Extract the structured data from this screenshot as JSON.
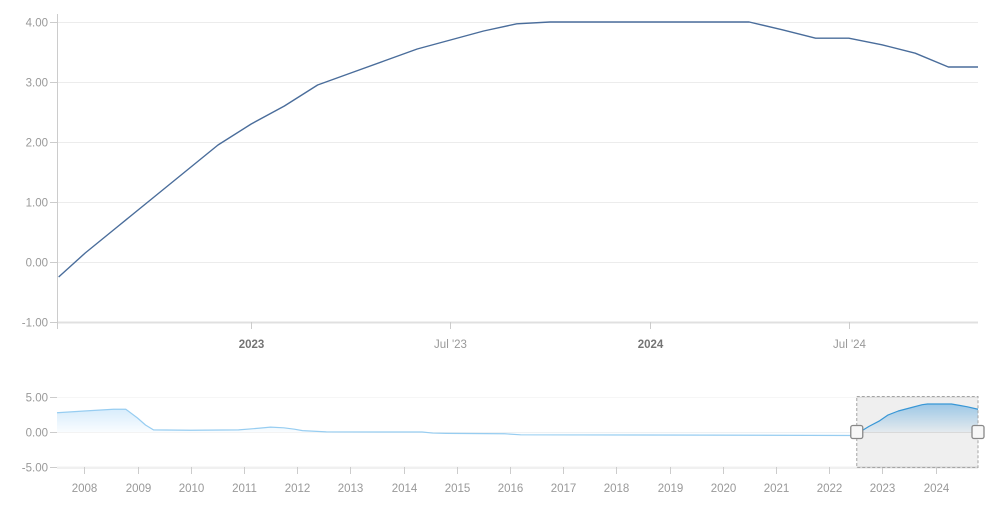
{
  "colors": {
    "main_line": "#4a6d9b",
    "nav_line": "#2f9be3",
    "nav_fill_top": "#64b5f0",
    "grid": "#ececec",
    "zero_grid": "#e6e6e6",
    "axis_line": "#e0e0e0",
    "vaxis_line": "#cccccc",
    "tick": "#cccccc",
    "axis_label": "#999999",
    "axis_label_bold": "#757575",
    "mask_fill": "rgba(120,120,120,0.12)",
    "mask_outline": "#a5a5a5",
    "dim_overlay": "rgba(255,255,255,0.5)",
    "handle_fill": "#f7f7f7",
    "handle_border": "#888888"
  },
  "chart_data": {
    "main": {
      "type": "line",
      "series_name": "rate",
      "x": [
        "2022-07",
        "2022-08",
        "2022-09",
        "2022-10",
        "2022-11",
        "2022-12",
        "2023-01",
        "2023-02",
        "2023-03",
        "2023-04",
        "2023-05",
        "2023-06",
        "2023-07",
        "2023-08",
        "2023-09",
        "2023-10",
        "2023-11",
        "2023-12",
        "2024-01",
        "2024-02",
        "2024-03",
        "2024-04",
        "2024-05",
        "2024-06",
        "2024-07",
        "2024-08",
        "2024-09",
        "2024-10"
      ],
      "values": [
        -0.25,
        0.15,
        0.6,
        1.05,
        1.5,
        1.95,
        2.3,
        2.6,
        2.95,
        3.15,
        3.35,
        3.55,
        3.7,
        3.85,
        3.97,
        4.0,
        4.0,
        4.0,
        4.0,
        4.0,
        4.0,
        4.0,
        3.87,
        3.73,
        3.73,
        3.62,
        3.48,
        3.25
      ],
      "ylim": [
        -1,
        4
      ],
      "grid": true,
      "y_ticks": [
        {
          "value": 4,
          "label": "4.00"
        },
        {
          "value": 3,
          "label": "3.00"
        },
        {
          "value": 2,
          "label": "2.00"
        },
        {
          "value": 1,
          "label": "1.00"
        },
        {
          "value": 0,
          "label": "0.00"
        },
        {
          "value": -1,
          "label": "-1.00"
        }
      ],
      "x_ticks": [
        {
          "label": "",
          "month": 0.15,
          "bold": false
        },
        {
          "label": "2023",
          "month": 6,
          "bold": true
        },
        {
          "label": "Jul '23",
          "month": 12,
          "bold": false
        },
        {
          "label": "2024",
          "month": 18,
          "bold": true
        },
        {
          "label": "Jul '24",
          "month": 24,
          "bold": false
        }
      ]
    },
    "navigator": {
      "type": "area",
      "series_name": "rate-history",
      "points": [
        [
          2007.45,
          2.75
        ],
        [
          2008.0,
          3.0
        ],
        [
          2008.55,
          3.25
        ],
        [
          2008.78,
          3.25
        ],
        [
          2009.0,
          2.0
        ],
        [
          2009.15,
          1.0
        ],
        [
          2009.3,
          0.3
        ],
        [
          2010.0,
          0.25
        ],
        [
          2010.9,
          0.3
        ],
        [
          2011.3,
          0.55
        ],
        [
          2011.5,
          0.7
        ],
        [
          2011.75,
          0.6
        ],
        [
          2011.95,
          0.4
        ],
        [
          2012.1,
          0.2
        ],
        [
          2012.55,
          0.02
        ],
        [
          2013.5,
          0.0
        ],
        [
          2014.35,
          0.0
        ],
        [
          2014.55,
          -0.15
        ],
        [
          2014.8,
          -0.2
        ],
        [
          2015.9,
          -0.25
        ],
        [
          2016.2,
          -0.4
        ],
        [
          2019.7,
          -0.45
        ],
        [
          2022.45,
          -0.5
        ],
        [
          2022.6,
          0.1
        ],
        [
          2022.75,
          0.8
        ],
        [
          2022.95,
          1.6
        ],
        [
          2023.1,
          2.4
        ],
        [
          2023.3,
          3.0
        ],
        [
          2023.55,
          3.5
        ],
        [
          2023.75,
          3.9
        ],
        [
          2023.85,
          4.0
        ],
        [
          2024.3,
          4.0
        ],
        [
          2024.45,
          3.8
        ],
        [
          2024.6,
          3.6
        ],
        [
          2024.82,
          3.25
        ]
      ],
      "ylim": [
        -5,
        5
      ],
      "y_ticks": [
        {
          "value": 5,
          "label": "5.00"
        },
        {
          "value": 0,
          "label": "0.00"
        },
        {
          "value": -5,
          "label": "-5.00"
        }
      ],
      "x_tick_years": [
        2008,
        2009,
        2010,
        2011,
        2012,
        2013,
        2014,
        2015,
        2016,
        2017,
        2018,
        2019,
        2020,
        2021,
        2022,
        2023,
        2024
      ],
      "selected_range_years": [
        2022.52,
        2024.82
      ]
    }
  }
}
